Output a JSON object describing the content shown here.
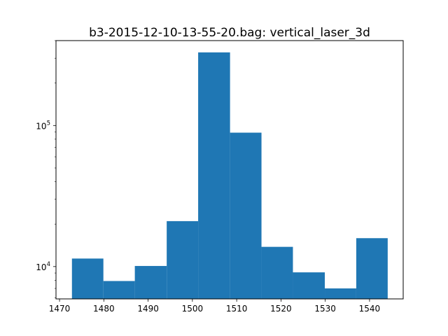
{
  "chart_data": {
    "type": "bar",
    "title": "b3-2015-12-10-13-55-20.bag: vertical_laser_3d",
    "xlabel": "",
    "ylabel": "",
    "yscale": "log",
    "grid": false,
    "xlim": [
      1469.2,
      1547.6
    ],
    "ylim": [
      5900,
      400000
    ],
    "bin_edges": [
      1472.8,
      1479.9,
      1487.0,
      1494.2,
      1501.3,
      1508.5,
      1515.6,
      1522.7,
      1529.9,
      1537.0,
      1544.1
    ],
    "values": [
      11400,
      7900,
      10100,
      21000,
      330000,
      89000,
      13800,
      9100,
      7000,
      15900
    ],
    "color": "#1f77b4",
    "x_ticks": [
      {
        "value": 1470,
        "label": "1470"
      },
      {
        "value": 1480,
        "label": "1480"
      },
      {
        "value": 1490,
        "label": "1490"
      },
      {
        "value": 1500,
        "label": "1500"
      },
      {
        "value": 1510,
        "label": "1510"
      },
      {
        "value": 1520,
        "label": "1520"
      },
      {
        "value": 1530,
        "label": "1530"
      },
      {
        "value": 1540,
        "label": "1540"
      }
    ],
    "y_major_ticks": [
      {
        "value": 10000,
        "base": "10",
        "exponent": "4"
      },
      {
        "value": 100000,
        "base": "10",
        "exponent": "5"
      }
    ],
    "y_minor_ticks": [
      6000,
      7000,
      8000,
      9000,
      20000,
      30000,
      40000,
      50000,
      60000,
      70000,
      80000,
      90000,
      200000,
      300000,
      400000
    ]
  }
}
